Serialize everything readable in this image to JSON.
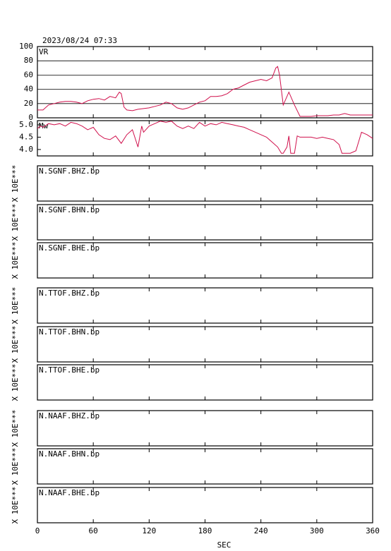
{
  "chart_data": [
    {
      "type": "line",
      "title": "2023/08/24 07:33",
      "label": "VR",
      "color": "#d0104c",
      "grid": true,
      "ylim": [
        0,
        100
      ],
      "yticks": [
        0,
        20,
        40,
        60,
        80,
        100
      ],
      "x": [
        0,
        6,
        12,
        18,
        24,
        30,
        36,
        42,
        48,
        54,
        60,
        66,
        72,
        78,
        84,
        88,
        90,
        93,
        96,
        102,
        108,
        114,
        120,
        126,
        132,
        138,
        144,
        150,
        156,
        162,
        168,
        174,
        180,
        186,
        192,
        198,
        204,
        210,
        216,
        222,
        228,
        234,
        240,
        246,
        252,
        256,
        258,
        260,
        264,
        270,
        276,
        282,
        288,
        294,
        300,
        306,
        312,
        318,
        324,
        330,
        336,
        342,
        348,
        354,
        360
      ],
      "values": [
        11,
        11,
        18,
        20,
        22,
        23,
        23,
        22,
        20,
        24,
        26,
        27,
        25,
        30,
        28,
        36,
        34,
        15,
        11,
        10,
        12,
        13,
        14,
        16,
        18,
        22,
        20,
        14,
        12,
        14,
        18,
        22,
        24,
        30,
        30,
        31,
        34,
        40,
        42,
        46,
        50,
        52,
        54,
        52,
        56,
        70,
        72,
        60,
        18,
        36,
        18,
        2,
        2,
        2,
        3,
        3,
        3,
        4,
        4,
        6,
        4,
        4,
        4,
        4,
        4
      ]
    },
    {
      "type": "line",
      "label": "Mw",
      "color": "#d0104c",
      "grid": false,
      "ylim": [
        3.74,
        5.17
      ],
      "yticks": [
        {
          "value": 4,
          "label": "4.0"
        },
        4.5,
        {
          "value": 5,
          "label": "5.0"
        }
      ],
      "x": [
        0,
        3,
        6,
        12,
        18,
        24,
        30,
        36,
        42,
        48,
        54,
        60,
        66,
        72,
        78,
        84,
        90,
        96,
        102,
        108,
        112,
        114,
        120,
        126,
        132,
        138,
        144,
        150,
        156,
        162,
        168,
        174,
        180,
        186,
        192,
        198,
        204,
        210,
        216,
        222,
        228,
        234,
        240,
        246,
        252,
        258,
        262,
        264,
        268,
        270,
        272,
        276,
        279,
        282,
        288,
        294,
        300,
        306,
        312,
        318,
        324,
        327,
        336,
        342,
        348,
        354,
        358,
        360
      ],
      "values": [
        4.85,
        4.95,
        4.9,
        5.05,
        5.0,
        5.05,
        4.95,
        5.1,
        5.05,
        4.95,
        4.8,
        4.9,
        4.6,
        4.45,
        4.4,
        4.55,
        4.25,
        4.6,
        4.8,
        4.1,
        4.95,
        4.7,
        4.95,
        5.05,
        5.15,
        5.1,
        5.15,
        4.95,
        4.85,
        4.95,
        4.85,
        5.1,
        4.95,
        5.05,
        5.0,
        5.1,
        5.05,
        5.0,
        4.95,
        4.9,
        4.8,
        4.7,
        4.6,
        4.5,
        4.3,
        4.1,
        3.85,
        3.85,
        4.1,
        4.55,
        3.85,
        3.85,
        4.55,
        4.5,
        4.5,
        4.5,
        4.45,
        4.5,
        4.45,
        4.4,
        4.2,
        3.85,
        3.85,
        3.95,
        4.7,
        4.6,
        4.5,
        4.45
      ]
    },
    {
      "type": "waveform",
      "label": "N.SGNF.BHZ.bp",
      "ylabel": "X 10E***"
    },
    {
      "type": "waveform",
      "label": "N.SGNF.BHN.bp",
      "ylabel": "X 10E***"
    },
    {
      "type": "waveform",
      "label": "N.SGNF.BHE.bp",
      "ylabel": "X 10E***"
    },
    {
      "type": "waveform",
      "label": "N.TTOF.BHZ.bp",
      "ylabel": "X 10E***"
    },
    {
      "type": "waveform",
      "label": "N.TTOF.BHN.bp",
      "ylabel": "X 10E***"
    },
    {
      "type": "waveform",
      "label": "N.TTOF.BHE.bp",
      "ylabel": "X 10E***"
    },
    {
      "type": "waveform",
      "label": "N.NAAF.BHZ.bp",
      "ylabel": "X 10E***"
    },
    {
      "type": "waveform",
      "label": "N.NAAF.BHN.bp",
      "ylabel": "X 10E***"
    },
    {
      "type": "waveform",
      "label": "N.NAAF.BHE.bp",
      "ylabel": "X 10E***",
      "xlim": [
        0,
        360
      ],
      "xticks": [
        0,
        60,
        120,
        180,
        240,
        300,
        360
      ],
      "xlabel": "SEC"
    }
  ]
}
